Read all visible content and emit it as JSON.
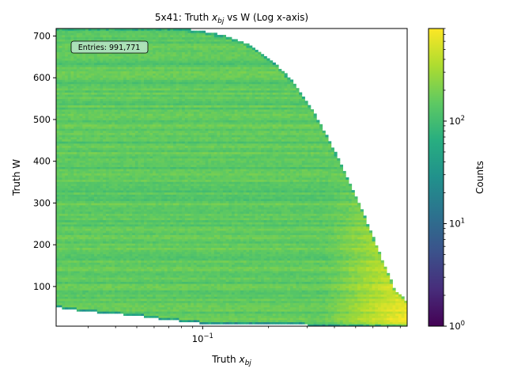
{
  "chart_data": {
    "type": "heatmap",
    "title": {
      "main": "5x41: Truth ",
      "var": "x",
      "sub": "bj",
      "rest": " vs W (Log x-axis)"
    },
    "xlabel": {
      "main": "Truth ",
      "var": "x",
      "sub": "bj"
    },
    "ylabel": "Truth W",
    "x_scale": "log",
    "xlim": [
      0.0214,
      0.86
    ],
    "ylim": [
      5,
      718
    ],
    "x_major_ticks": [
      {
        "value": 0.1,
        "base": "10",
        "exp": "−1"
      }
    ],
    "y_ticks": [
      100,
      200,
      300,
      400,
      500,
      600,
      700
    ],
    "colorbar": {
      "label": "Counts",
      "scale": "log",
      "range": [
        1,
        800
      ],
      "ticks": [
        {
          "value": 1,
          "base": "10",
          "exp": "0"
        },
        {
          "value": 10,
          "base": "10",
          "exp": "1"
        },
        {
          "value": 100,
          "base": "10",
          "exp": "2"
        }
      ]
    },
    "colormap": [
      "#440154",
      "#472d7b",
      "#3b528b",
      "#2c728e",
      "#21918c",
      "#28ae80",
      "#5ec962",
      "#addc30",
      "#fde725"
    ],
    "boundary_W_max_at_x": [
      [
        0.0214,
        718
      ],
      [
        0.08,
        718
      ],
      [
        0.1,
        712
      ],
      [
        0.13,
        700
      ],
      [
        0.17,
        675
      ],
      [
        0.21,
        640
      ],
      [
        0.26,
        590
      ],
      [
        0.32,
        520
      ],
      [
        0.38,
        450
      ],
      [
        0.45,
        370
      ],
      [
        0.52,
        300
      ],
      [
        0.6,
        220
      ],
      [
        0.68,
        150
      ],
      [
        0.76,
        90
      ],
      [
        0.86,
        65
      ]
    ],
    "boundary_W_min_at_x": [
      [
        0.0214,
        50
      ],
      [
        0.03,
        40
      ],
      [
        0.05,
        30
      ],
      [
        0.07,
        20
      ],
      [
        0.11,
        10
      ],
      [
        0.86,
        5
      ]
    ],
    "typical_counts": 150,
    "high_counts_region": "x > 0.5, low W (up to ~800)",
    "annotation": "Entries: 991,771"
  }
}
